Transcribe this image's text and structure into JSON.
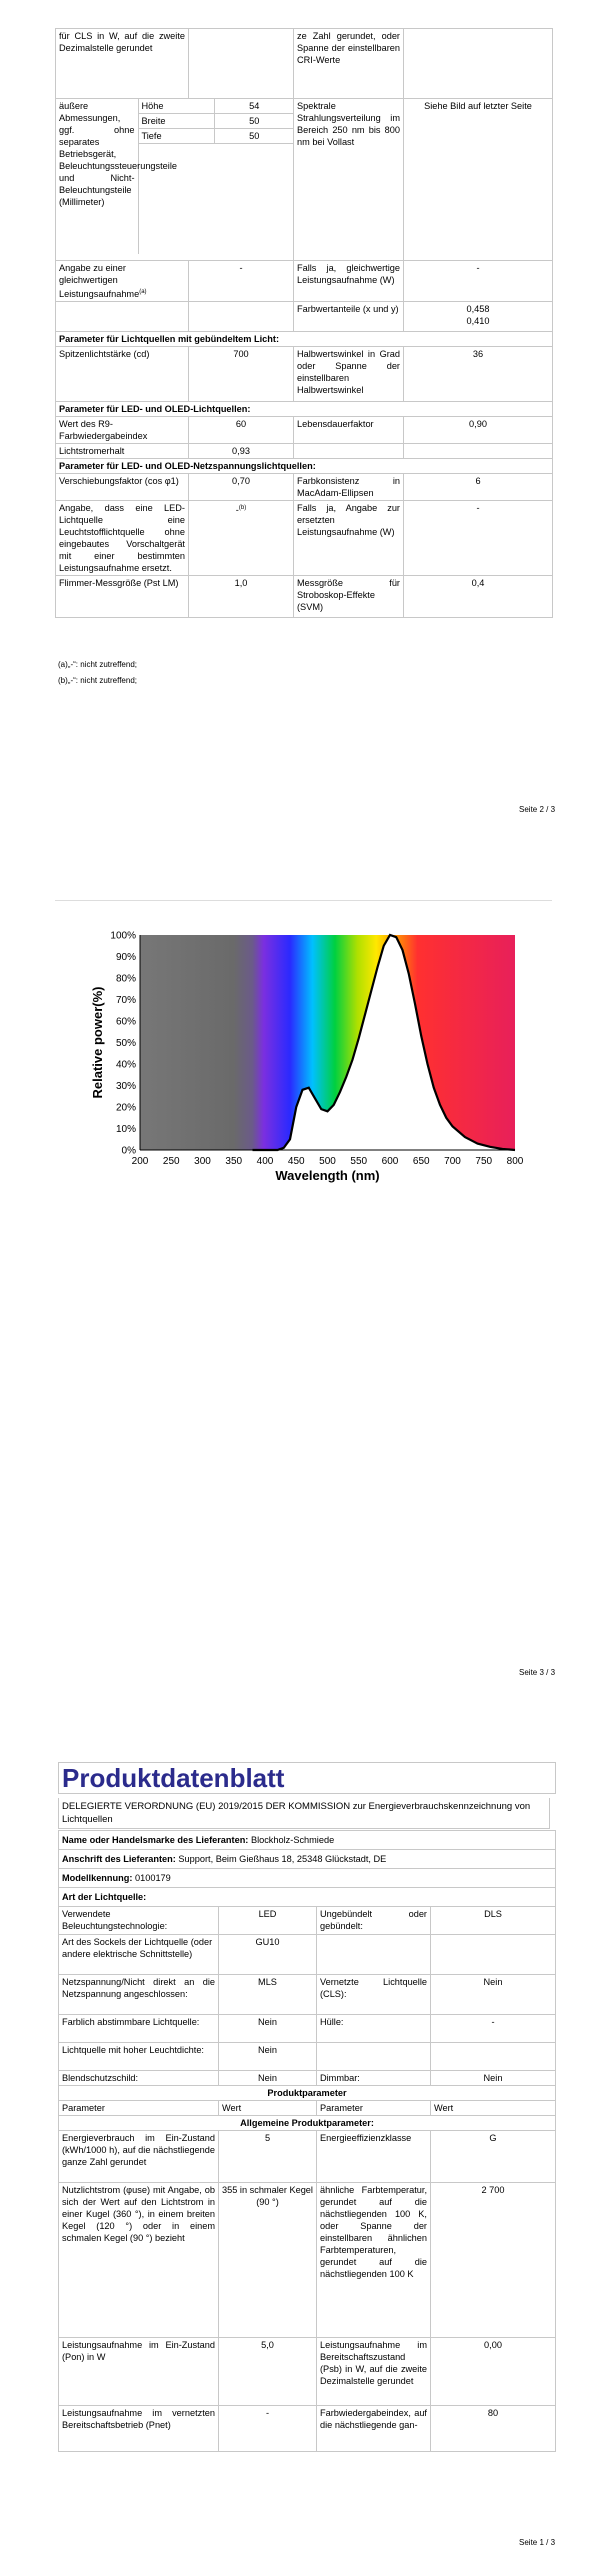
{
  "page2": {
    "rows": [
      {
        "a": "für CLS in W, auf die zweite Dezimalstelle gerundet",
        "b": "",
        "c": "ze Zahl gerundet, oder Spanne der einstellbaren CRI-Werte",
        "d": ""
      },
      {
        "a": "äußere Abmessungen, ggf. ohne separates Betriebsgerät, Beleuchtungssteuerungsteile und Nicht-Beleuchtungsteile (Millimeter)",
        "dims": [
          {
            "label": "Höhe",
            "value": "54"
          },
          {
            "label": "Breite",
            "value": "50"
          },
          {
            "label": "Tiefe",
            "value": "50"
          }
        ],
        "c": "Spektrale Strahlungsverteilung im Bereich 250 nm bis 800 nm bei Vollast",
        "d": "Siehe Bild auf letzter Seite"
      },
      {
        "a": "Angabe zu einer gleichwertigen Leistungsaufnahme",
        "a_sup": "(a)",
        "b": "-",
        "c": "Falls ja, gleichwertige Leistungsaufnahme (W)",
        "d": "-"
      },
      {
        "c": "Farbwertanteile (x und y)",
        "d": "0,458",
        "d2": "0,410"
      }
    ],
    "section_directional": "Parameter für Lichtquellen mit gebündeltem Licht:",
    "directional": {
      "a": "Spitzenlichtstärke (cd)",
      "b": "700",
      "c": "Halbwertswinkel in Grad oder Spanne der einstellbaren Halbwertswinkel",
      "d": "36"
    },
    "section_led": "Parameter für LED- und OLED-Lichtquellen:",
    "led": [
      {
        "a": "Wert des R9-Farbwiedergabeindex",
        "b": "60",
        "c": "Lebensdauerfaktor",
        "d": "0,90"
      },
      {
        "a": "Lichtstromerhalt",
        "b": "0,93",
        "c": "",
        "d": ""
      }
    ],
    "section_mains": "Parameter für LED- und OLED-Netzspannungslichtquellen:",
    "mains": [
      {
        "a": "Verschiebungsfaktor (cos φ1)",
        "b": "0,70",
        "c": "Farbkonsistenz in MacAdam-Ellipsen",
        "d": "6"
      },
      {
        "a": "Angabe, dass eine LED-Lichtquelle eine Leuchtstofflichtquelle ohne eingebautes Vorschaltgerät mit einer bestimmten Leistungsaufnahme ersetzt.",
        "b": "-",
        "b_sup": "(b)",
        "c": "Falls ja, Angabe zur ersetzten Leistungsaufnahme (W)",
        "d": "-"
      },
      {
        "a": "Flimmer-Messgröße (Pst LM)",
        "b": "1,0",
        "c": "Messgröße für Stroboskop-Effekte (SVM)",
        "d": "0,4"
      }
    ],
    "footnotes": [
      "(a)„-“: nicht zutreffend;",
      "(b)„-“: nicht zutreffend;"
    ],
    "page_number": "Seite 2 / 3"
  },
  "chart_data": {
    "type": "line",
    "title": "",
    "xlabel": "Wavelength (nm)",
    "ylabel": "Relative power(%)",
    "xlim": [
      200,
      800
    ],
    "ylim": [
      0,
      100
    ],
    "xticks": [
      "200",
      "250",
      "300",
      "350",
      "400",
      "450",
      "500",
      "550",
      "600",
      "650",
      "700",
      "750",
      "800"
    ],
    "yticks": [
      "0%",
      "10%",
      "20%",
      "30%",
      "40%",
      "50%",
      "60%",
      "70%",
      "80%",
      "90%",
      "100%"
    ],
    "series": [
      {
        "x": [
          380,
          420,
          430,
          440,
          450,
          460,
          470,
          480,
          490,
          500,
          510,
          520,
          530,
          540,
          550,
          560,
          570,
          580,
          590,
          600,
          610,
          620,
          630,
          640,
          650,
          660,
          670,
          680,
          690,
          700,
          720,
          740,
          760,
          780,
          800
        ],
        "y": [
          0,
          0,
          1,
          5,
          20,
          28,
          29,
          24,
          19,
          18,
          21,
          27,
          34,
          42,
          52,
          63,
          74,
          85,
          95,
          100,
          99,
          93,
          82,
          68,
          53,
          40,
          29,
          21,
          15,
          11,
          6,
          3,
          1.5,
          0.5,
          0
        ]
      }
    ],
    "grid": false,
    "page_number": "Seite 3 / 3"
  },
  "page1": {
    "title": "Produktdatenblatt",
    "regulation": "DELEGIERTE VERORDNUNG (EU) 2019/2015 DER KOMMISSION zur Energieverbrauchskennzeichnung von Lichtquellen",
    "supplier_label": "Name oder Handelsmarke des Lieferanten:",
    "supplier": "Blockholz-Schmiede",
    "address_label": "Anschrift des Lieferanten:",
    "address": "Support, Beim Gießhaus 18, 25348 Glückstadt, DE",
    "model_label": "Modellkennung:",
    "model": "0100179",
    "type_section": "Art der Lichtquelle:",
    "type_rows": [
      {
        "a": "Verwendete Beleuchtungstechnologie:",
        "b": "LED",
        "c": "Ungebündelt oder gebündelt:",
        "d": "DLS"
      },
      {
        "a": "Art des Sockels der Lichtquelle (oder andere elektrische Schnittstelle)",
        "b": "GU10",
        "c": "",
        "d": ""
      },
      {
        "a": "Netzspannung/Nicht direkt an die Netzspannung angeschlossen:",
        "b": "MLS",
        "c": "Vernetzte Lichtquelle (CLS):",
        "d": "Nein"
      },
      {
        "a": "Farblich abstimmbare Lichtquelle:",
        "b": "Nein",
        "c": "Hülle:",
        "d": "-"
      },
      {
        "a": "Lichtquelle mit hoher Leuchtdichte:",
        "b": "Nein",
        "c": "",
        "d": ""
      },
      {
        "a": "Blendschutzschild:",
        "b": "Nein",
        "c": "Dimmbar:",
        "d": "Nein"
      }
    ],
    "product_params": "Produktparameter",
    "head": {
      "p": "Parameter",
      "w": "Wert",
      "p2": "Parameter",
      "w2": "Wert"
    },
    "general": "Allgemeine Produktparameter:",
    "param_rows": [
      {
        "a": "Energieverbrauch im Ein-Zustand (kWh/1000 h), auf die nächstliegende ganze Zahl gerundet",
        "b": "5",
        "c": "Energieeffizienzklasse",
        "d": "G"
      },
      {
        "a": "Nutzlichtstrom (φuse) mit Angabe, ob sich der Wert auf den Lichtstrom in einer Kugel (360 °), in einem breiten Kegel (120 °) oder in einem schmalen Kegel (90 °) bezieht",
        "b": "355 in schmaler Kegel (90 °)",
        "c": "ähnliche Farbtemperatur, gerundet auf die nächstliegenden 100 K, oder Spanne der einstellbaren ähnlichen Farbtemperaturen, gerundet auf die nächstliegenden 100 K",
        "d": "2 700"
      },
      {
        "a": "Leistungsaufnahme im Ein-Zustand (Pon) in W",
        "b": "5,0",
        "c": "Leistungsaufnahme im Bereitschaftszustand (Psb) in W, auf die zweite Dezimalstelle gerundet",
        "d": "0,00"
      },
      {
        "a": "Leistungsaufnahme im vernetzten Bereitschaftsbetrieb (Pnet)",
        "b": "-",
        "c": "Farbwiedergabeindex, auf die nächstliegende gan-",
        "d": "80"
      }
    ],
    "page_number": "Seite 1 / 3"
  }
}
